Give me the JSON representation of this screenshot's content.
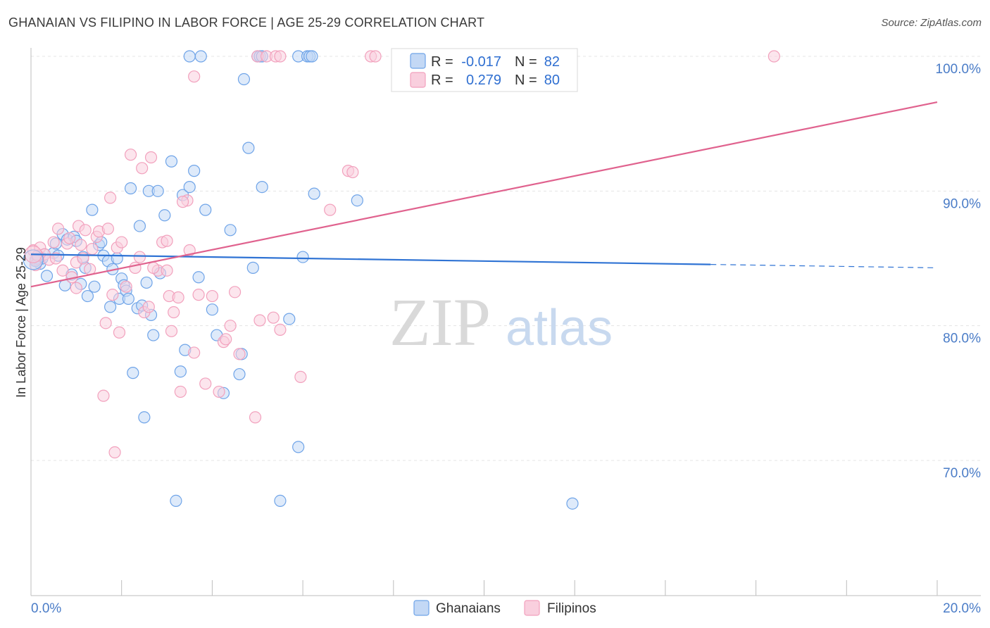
{
  "title": "GHANAIAN VS FILIPINO IN LABOR FORCE | AGE 25-29 CORRELATION CHART",
  "source": "Source: ZipAtlas.com",
  "chart_data": {
    "type": "scatter",
    "title": "GHANAIAN VS FILIPINO IN LABOR FORCE | AGE 25-29 CORRELATION CHART",
    "xlabel": "",
    "ylabel": "In Labor Force | Age 25-29",
    "xlim": [
      0,
      20
    ],
    "ylim": [
      60,
      100
    ],
    "x_tick_labels": [
      "0.0%",
      "20.0%"
    ],
    "y_ticks": [
      70,
      80,
      90,
      100
    ],
    "y_tick_labels": [
      "70.0%",
      "80.0%",
      "90.0%",
      "100.0%"
    ],
    "grid": true,
    "watermark": {
      "zip": "ZIP",
      "atlas": "atlas"
    },
    "legend": {
      "placement": "top-center",
      "entries": [
        {
          "r_label": "R =",
          "r_value": "-0.017",
          "n_label": "N =",
          "n_value": "82"
        },
        {
          "r_label": "R =",
          "r_value": "0.279",
          "n_label": "N =",
          "n_value": "80"
        }
      ]
    },
    "series": [
      {
        "name": "Ghanaians",
        "color": "#6fa4e8",
        "line_color": "#2f73d4",
        "trend": {
          "x0": 0,
          "y0": 85.3,
          "x1": 20,
          "y1": 84.3,
          "solid_until": 15.0
        },
        "points": [
          [
            0.15,
            85.2
          ],
          [
            0.2,
            84.6
          ],
          [
            0.25,
            85.0
          ],
          [
            0.35,
            83.7
          ],
          [
            0.5,
            85.4
          ],
          [
            0.55,
            86.1
          ],
          [
            0.6,
            85.2
          ],
          [
            0.7,
            86.8
          ],
          [
            0.75,
            83.0
          ],
          [
            0.8,
            86.4
          ],
          [
            0.9,
            83.8
          ],
          [
            0.95,
            86.6
          ],
          [
            1.0,
            86.3
          ],
          [
            1.1,
            83.1
          ],
          [
            1.15,
            85.1
          ],
          [
            1.2,
            84.3
          ],
          [
            1.25,
            82.2
          ],
          [
            1.35,
            88.6
          ],
          [
            1.4,
            82.9
          ],
          [
            1.5,
            86.0
          ],
          [
            1.55,
            86.2
          ],
          [
            1.6,
            85.2
          ],
          [
            1.7,
            84.8
          ],
          [
            1.75,
            81.4
          ],
          [
            1.8,
            84.2
          ],
          [
            1.9,
            85.0
          ],
          [
            1.95,
            82.0
          ],
          [
            2.0,
            83.5
          ],
          [
            2.05,
            83.0
          ],
          [
            2.1,
            82.6
          ],
          [
            2.15,
            82.0
          ],
          [
            2.2,
            90.2
          ],
          [
            2.25,
            76.5
          ],
          [
            2.35,
            81.3
          ],
          [
            2.4,
            87.4
          ],
          [
            2.45,
            81.5
          ],
          [
            2.5,
            73.2
          ],
          [
            2.55,
            83.2
          ],
          [
            2.6,
            90.0
          ],
          [
            2.65,
            80.8
          ],
          [
            2.7,
            79.3
          ],
          [
            2.8,
            90.0
          ],
          [
            2.85,
            83.9
          ],
          [
            2.95,
            88.2
          ],
          [
            3.1,
            92.2
          ],
          [
            3.2,
            67.0
          ],
          [
            3.3,
            76.6
          ],
          [
            3.35,
            89.7
          ],
          [
            3.4,
            78.2
          ],
          [
            3.5,
            90.3
          ],
          [
            3.6,
            91.5
          ],
          [
            3.7,
            83.6
          ],
          [
            3.85,
            88.6
          ],
          [
            4.0,
            81.2
          ],
          [
            4.1,
            79.3
          ],
          [
            4.25,
            75.0
          ],
          [
            4.4,
            87.1
          ],
          [
            4.6,
            76.4
          ],
          [
            4.65,
            77.9
          ],
          [
            4.8,
            93.2
          ],
          [
            4.9,
            84.3
          ],
          [
            5.1,
            90.3
          ],
          [
            5.5,
            67.0
          ],
          [
            5.7,
            80.5
          ],
          [
            5.9,
            71.0
          ],
          [
            6.0,
            85.1
          ],
          [
            6.25,
            89.8
          ],
          [
            7.2,
            89.3
          ],
          [
            11.95,
            66.8
          ],
          [
            3.5,
            100.0
          ],
          [
            3.75,
            100.0
          ],
          [
            5.0,
            100.0
          ],
          [
            5.05,
            100.0
          ],
          [
            5.1,
            100.0
          ],
          [
            5.9,
            100.0
          ],
          [
            6.1,
            100.0
          ],
          [
            6.15,
            100.0
          ],
          [
            6.2,
            100.0
          ],
          [
            4.7,
            98.3
          ],
          [
            0.1,
            84.8
          ],
          [
            0.15,
            85.0
          ],
          [
            0.3,
            85.3
          ]
        ]
      },
      {
        "name": "Filipinos",
        "color": "#f2a1bd",
        "line_color": "#e0628e",
        "trend": {
          "x0": 0,
          "y0": 82.9,
          "x1": 20,
          "y1": 96.6,
          "solid_until": 20.0
        },
        "points": [
          [
            0.05,
            85.6
          ],
          [
            0.1,
            84.9
          ],
          [
            0.2,
            85.8
          ],
          [
            0.3,
            85.3
          ],
          [
            0.4,
            84.9
          ],
          [
            0.5,
            86.2
          ],
          [
            0.55,
            85.0
          ],
          [
            0.6,
            87.2
          ],
          [
            0.7,
            84.1
          ],
          [
            0.8,
            86.1
          ],
          [
            0.85,
            86.5
          ],
          [
            0.9,
            83.6
          ],
          [
            1.0,
            84.7
          ],
          [
            1.05,
            87.4
          ],
          [
            1.1,
            86.0
          ],
          [
            1.15,
            85.0
          ],
          [
            1.2,
            87.1
          ],
          [
            1.3,
            84.2
          ],
          [
            1.35,
            85.7
          ],
          [
            1.45,
            86.6
          ],
          [
            1.5,
            87.0
          ],
          [
            1.6,
            74.8
          ],
          [
            1.65,
            80.2
          ],
          [
            1.7,
            87.2
          ],
          [
            1.75,
            89.5
          ],
          [
            1.8,
            82.3
          ],
          [
            1.85,
            70.6
          ],
          [
            1.9,
            85.8
          ],
          [
            1.95,
            79.5
          ],
          [
            2.0,
            86.2
          ],
          [
            2.1,
            82.9
          ],
          [
            2.2,
            92.7
          ],
          [
            2.3,
            84.3
          ],
          [
            2.4,
            85.1
          ],
          [
            2.45,
            91.7
          ],
          [
            2.5,
            81.0
          ],
          [
            2.6,
            81.4
          ],
          [
            2.65,
            92.5
          ],
          [
            2.8,
            84.1
          ],
          [
            2.9,
            86.2
          ],
          [
            3.0,
            86.3
          ],
          [
            3.05,
            82.2
          ],
          [
            3.1,
            79.6
          ],
          [
            3.15,
            81.0
          ],
          [
            3.25,
            82.1
          ],
          [
            3.3,
            75.1
          ],
          [
            3.45,
            89.3
          ],
          [
            3.5,
            85.6
          ],
          [
            3.6,
            78.0
          ],
          [
            3.7,
            82.3
          ],
          [
            3.85,
            75.7
          ],
          [
            4.0,
            82.2
          ],
          [
            4.15,
            75.1
          ],
          [
            4.25,
            78.8
          ],
          [
            4.3,
            79.0
          ],
          [
            4.4,
            80.0
          ],
          [
            4.5,
            82.5
          ],
          [
            4.95,
            73.2
          ],
          [
            5.05,
            80.4
          ],
          [
            5.35,
            80.6
          ],
          [
            5.5,
            79.7
          ],
          [
            5.95,
            76.2
          ],
          [
            6.6,
            88.6
          ],
          [
            7.0,
            91.5
          ],
          [
            7.1,
            91.4
          ],
          [
            3.6,
            98.5
          ],
          [
            5.0,
            100.0
          ],
          [
            5.2,
            100.0
          ],
          [
            5.4,
            100.0
          ],
          [
            5.5,
            100.0
          ],
          [
            7.5,
            100.0
          ],
          [
            7.6,
            100.0
          ],
          [
            16.4,
            100.0
          ],
          [
            0.1,
            84.5
          ],
          [
            0.15,
            85.2
          ],
          [
            2.7,
            84.3
          ],
          [
            3.0,
            84.1
          ],
          [
            1.0,
            82.8
          ],
          [
            4.6,
            77.9
          ],
          [
            3.35,
            89.2
          ]
        ]
      }
    ]
  }
}
